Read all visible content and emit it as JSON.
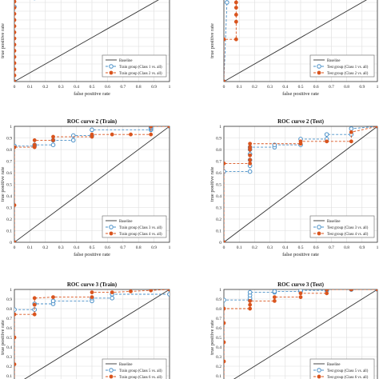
{
  "theme": {
    "baseline_color": "#333333",
    "class_a_color": "#4a90c8",
    "class_b_color": "#d9541e",
    "grid_color": "#dddddd",
    "axis_color": "#333333"
  },
  "chart_data": [
    {
      "id": "p1",
      "type": "line",
      "title": "",
      "xlabel": "false positive rate",
      "ylabel": "true positive rate",
      "xlim": [
        0,
        1
      ],
      "ylim": [
        0,
        1
      ],
      "xticks": [
        "0",
        "0.1",
        "0.2",
        "0.3",
        "0.4",
        "0.5",
        "0.6",
        "0.7",
        "0.8",
        "0.9",
        "1"
      ],
      "yticks": [],
      "grid": true,
      "legend_position": "bottom-right",
      "series": [
        {
          "name": "Baseline",
          "kind": "baseline",
          "x": [
            0,
            1
          ],
          "y": [
            0,
            1
          ]
        },
        {
          "name": "Train group (Class 1 vs. all)",
          "kind": "a",
          "x": [
            0,
            0,
            0,
            0.13,
            0.13,
            0.13
          ],
          "y": [
            0,
            0.85,
            0.99,
            0.99,
            0.95,
            1.0
          ]
        },
        {
          "name": "Train group (Class 2 vs. all)",
          "kind": "b",
          "x": [
            0,
            0,
            0,
            0,
            0,
            0,
            0,
            0,
            0,
            0,
            0,
            0,
            0,
            0,
            0
          ],
          "y": [
            0,
            0.07,
            0.14,
            0.21,
            0.28,
            0.35,
            0.42,
            0.49,
            0.56,
            0.63,
            0.7,
            0.77,
            0.84,
            0.91,
            0.98
          ]
        }
      ]
    },
    {
      "id": "p2",
      "type": "line",
      "title": "",
      "xlabel": "false positive rate",
      "ylabel": "true positive rate",
      "xlim": [
        0,
        1
      ],
      "ylim": [
        0,
        1
      ],
      "xticks": [
        "0",
        "0.1",
        "0.2",
        "0.3",
        "0.4",
        "0.5",
        "0.6",
        "0.7",
        "0.8",
        "0.9",
        "1"
      ],
      "yticks": [],
      "grid": true,
      "legend_position": "bottom-right",
      "series": [
        {
          "name": "Baseline",
          "kind": "baseline",
          "x": [
            0,
            1
          ],
          "y": [
            0,
            1
          ]
        },
        {
          "name": "Test group (Class 1 vs. all)",
          "kind": "a",
          "x": [
            0,
            0.02,
            0.02
          ],
          "y": [
            0,
            0.9,
            1.0
          ]
        },
        {
          "name": "Test group (Class 2 vs. all)",
          "kind": "b",
          "x": [
            0,
            0,
            0.08,
            0.08,
            0.08,
            0.08,
            0.08,
            0.08,
            0.08
          ],
          "y": [
            0,
            0.48,
            0.48,
            0.68,
            0.76,
            0.84,
            0.9,
            0.95,
            1.0
          ]
        }
      ]
    },
    {
      "id": "p3",
      "type": "line",
      "title": "ROC curve 2 (Train)",
      "xlabel": "false positive rate",
      "ylabel": "true positive rate",
      "xlim": [
        0,
        1
      ],
      "ylim": [
        0,
        1
      ],
      "xticks": [
        "0",
        "0.1",
        "0.2",
        "0.3",
        "0.4",
        "0.5",
        "0.6",
        "0.7",
        "0.8",
        "0.9",
        "1"
      ],
      "yticks": [
        "0",
        "0.1",
        "0.2",
        "0.3",
        "0.4",
        "0.5",
        "0.6",
        "0.7",
        "0.8",
        "0.9",
        "1"
      ],
      "grid": true,
      "legend_position": "bottom-right",
      "series": [
        {
          "name": "Baseline",
          "kind": "baseline",
          "x": [
            0,
            1
          ],
          "y": [
            0,
            1
          ]
        },
        {
          "name": "Train group (Class 3 vs. all)",
          "kind": "a",
          "x": [
            0,
            0,
            0,
            0.13,
            0.13,
            0.25,
            0.25,
            0.38,
            0.38,
            0.5,
            0.5,
            0.88,
            0.88,
            0.88,
            0.88,
            1.0
          ],
          "y": [
            0,
            0.83,
            0.83,
            0.83,
            0.84,
            0.84,
            0.88,
            0.88,
            0.92,
            0.92,
            0.97,
            0.97,
            0.98,
            0.99,
            1.0,
            1.0
          ]
        },
        {
          "name": "Train group (Class 4 vs. all)",
          "kind": "b",
          "x": [
            0,
            0,
            0,
            0.13,
            0.13,
            0.13,
            0.25,
            0.25,
            0.5,
            0.5,
            0.63,
            0.75,
            0.88,
            0.88,
            1.0
          ],
          "y": [
            0,
            0.32,
            0.82,
            0.82,
            0.84,
            0.88,
            0.88,
            0.91,
            0.91,
            0.93,
            0.93,
            0.93,
            0.93,
            1.0,
            1.0
          ]
        }
      ]
    },
    {
      "id": "p4",
      "type": "line",
      "title": "ROC curve 2 (Test)",
      "xlabel": "false positive rate",
      "ylabel": "true positive rate",
      "xlim": [
        0,
        1
      ],
      "ylim": [
        0,
        1
      ],
      "xticks": [
        "0",
        "0.1",
        "0.2",
        "0.3",
        "0.4",
        "0.5",
        "0.6",
        "0.7",
        "0.8",
        "0.9",
        "1"
      ],
      "yticks": [
        "0",
        "0.1",
        "0.2",
        "0.3",
        "0.4",
        "0.5",
        "0.6",
        "0.7",
        "0.8",
        "0.9",
        "1"
      ],
      "grid": true,
      "legend_position": "bottom-right",
      "series": [
        {
          "name": "Baseline",
          "kind": "baseline",
          "x": [
            0,
            1
          ],
          "y": [
            0,
            1
          ]
        },
        {
          "name": "Test group (Class 3 vs. all)",
          "kind": "a",
          "x": [
            0,
            0,
            0.17,
            0.17,
            0.17,
            0.17,
            0.17,
            0.17,
            0.33,
            0.33,
            0.5,
            0.5,
            0.67,
            0.67,
            0.83,
            0.83,
            1.0
          ],
          "y": [
            0,
            0.61,
            0.61,
            0.66,
            0.71,
            0.76,
            0.8,
            0.82,
            0.82,
            0.84,
            0.84,
            0.89,
            0.89,
            0.93,
            0.93,
            0.98,
            1.0
          ]
        },
        {
          "name": "Test group (Class 4 vs. all)",
          "kind": "b",
          "x": [
            0,
            0,
            0.17,
            0.17,
            0.17,
            0.17,
            0.17,
            0.17,
            0.5,
            0.5,
            0.67,
            0.83,
            0.83,
            1.0
          ],
          "y": [
            0,
            0.68,
            0.68,
            0.71,
            0.75,
            0.8,
            0.82,
            0.85,
            0.85,
            0.87,
            0.87,
            0.87,
            0.95,
            1.0
          ]
        }
      ]
    },
    {
      "id": "p5",
      "type": "line",
      "title": "ROC curve 3 (Train)",
      "xlabel": "",
      "ylabel": "true positive rate",
      "xlim": [
        0,
        1
      ],
      "ylim": [
        0,
        1
      ],
      "xticks": [],
      "yticks": [
        "0.1",
        "0.2",
        "0.3",
        "0.4",
        "0.5",
        "0.6",
        "0.7",
        "0.8",
        "0.9",
        "1"
      ],
      "grid": true,
      "legend_position": "bottom-right",
      "series": [
        {
          "name": "Baseline",
          "kind": "baseline",
          "x": [
            0,
            1
          ],
          "y": [
            0,
            1
          ]
        },
        {
          "name": "Train group (Class 5 vs. all)",
          "kind": "a",
          "x": [
            0,
            0,
            0.13,
            0.13,
            0.25,
            0.25,
            0.5,
            0.5,
            0.63,
            0.63,
            1.0,
            1.0
          ],
          "y": [
            0,
            0.79,
            0.79,
            0.85,
            0.85,
            0.88,
            0.88,
            0.91,
            0.91,
            0.95,
            0.95,
            1.0
          ]
        },
        {
          "name": "Train group (Class 6 vs. all)",
          "kind": "b",
          "x": [
            0,
            0,
            0,
            0,
            0.13,
            0.13,
            0.13,
            0.25,
            0.5,
            0.5,
            0.63,
            0.75,
            0.88,
            1.0
          ],
          "y": [
            0,
            0.22,
            0.5,
            0.74,
            0.74,
            0.84,
            0.91,
            0.92,
            0.92,
            0.97,
            0.97,
            0.98,
            0.99,
            1.0
          ]
        }
      ]
    },
    {
      "id": "p6",
      "type": "line",
      "title": "ROC curve 3 (Test)",
      "xlabel": "",
      "ylabel": "true positive rate",
      "xlim": [
        0,
        1
      ],
      "ylim": [
        0,
        1
      ],
      "xticks": [],
      "yticks": [
        "0.1",
        "0.2",
        "0.3",
        "0.4",
        "0.5",
        "0.6",
        "0.7",
        "0.8",
        "0.9",
        "1"
      ],
      "grid": true,
      "legend_position": "bottom-right",
      "series": [
        {
          "name": "Baseline",
          "kind": "baseline",
          "x": [
            0,
            1
          ],
          "y": [
            0,
            1
          ]
        },
        {
          "name": "Test group (Class 5 vs. all)",
          "kind": "a",
          "x": [
            0,
            0,
            0.17,
            0.17,
            0.17,
            0.17,
            0.33,
            0.33,
            0.5,
            0.5,
            0.67,
            0.67,
            0.83,
            0.83,
            1.0
          ],
          "y": [
            0,
            0.89,
            0.89,
            0.91,
            0.94,
            0.97,
            0.97,
            0.98,
            0.98,
            0.99,
            0.99,
            1.0,
            1.0,
            1.0,
            1.0
          ]
        },
        {
          "name": "Test group (Class 6 vs. all)",
          "kind": "b",
          "x": [
            0,
            0,
            0,
            0,
            0,
            0.17,
            0.17,
            0.17,
            0.33,
            0.33,
            0.5,
            0.5,
            0.67,
            0.67,
            0.83,
            1.0
          ],
          "y": [
            0,
            0.25,
            0.45,
            0.65,
            0.8,
            0.8,
            0.84,
            0.88,
            0.88,
            0.92,
            0.92,
            0.96,
            0.96,
            1.0,
            1.0,
            1.0
          ]
        }
      ]
    }
  ]
}
